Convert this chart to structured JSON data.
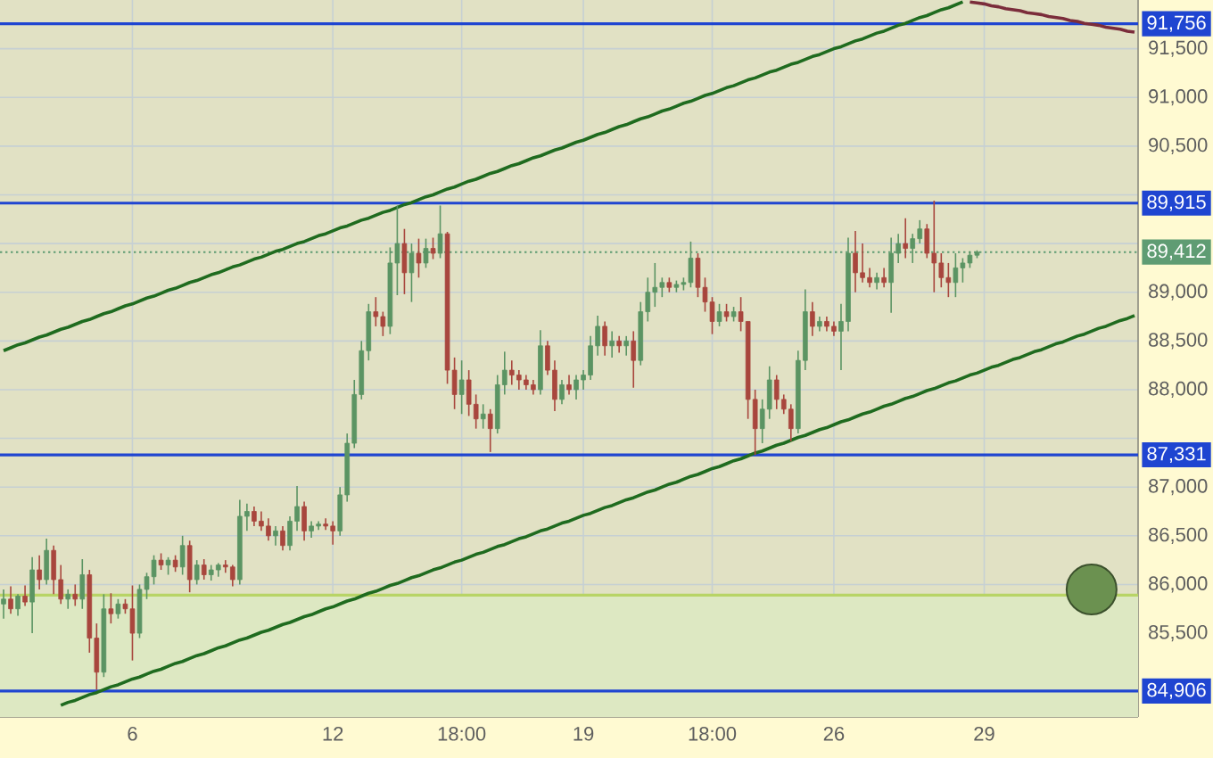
{
  "chart_data": {
    "type": "candlestick",
    "categories": [
      null,
      null,
      null,
      null,
      null,
      null,
      null,
      null,
      null,
      null,
      null,
      null,
      null,
      null,
      null,
      null,
      null,
      null,
      "6",
      null,
      null,
      null,
      null,
      null,
      null,
      null,
      null,
      null,
      null,
      null,
      null,
      null,
      null,
      null,
      null,
      null,
      null,
      null,
      null,
      null,
      null,
      null,
      null,
      null,
      null,
      null,
      "12",
      null,
      null,
      null,
      null,
      null,
      null,
      null,
      null,
      null,
      null,
      null,
      null,
      null,
      null,
      null,
      null,
      null,
      "18:00",
      null,
      null,
      null,
      null,
      null,
      null,
      null,
      null,
      null,
      null,
      null,
      null,
      null,
      null,
      null,
      null,
      "19",
      null,
      null,
      null,
      null,
      null,
      null,
      null,
      null,
      null,
      null,
      null,
      null,
      null,
      null,
      null,
      null,
      null,
      "18:00",
      null,
      null,
      null,
      null,
      null,
      null,
      null,
      null,
      null,
      null,
      null,
      null,
      null,
      null,
      null,
      null,
      "26",
      null,
      null,
      null,
      null,
      null,
      null,
      null,
      null,
      null,
      null,
      null,
      null,
      null,
      null,
      null,
      null,
      null,
      null,
      null,
      null,
      "29",
      null,
      null,
      null,
      null,
      null,
      null,
      null,
      null,
      null,
      null,
      null,
      null,
      null,
      null,
      null,
      null,
      null,
      null,
      null,
      null,
      null
    ],
    "ylim": [
      84640,
      92000
    ],
    "yticks": [
      {
        "value": 85000,
        "label": null
      },
      {
        "value": 85500,
        "label": "85,500"
      },
      {
        "value": 86000,
        "label": "86,000"
      },
      {
        "value": 86500,
        "label": "86,500"
      },
      {
        "value": 87000,
        "label": "87,000"
      },
      {
        "value": 87500,
        "label": null
      },
      {
        "value": 88000,
        "label": "88,000"
      },
      {
        "value": 88500,
        "label": "88,500"
      },
      {
        "value": 89000,
        "label": "89,000"
      },
      {
        "value": 89500,
        "label": null
      },
      {
        "value": 90000,
        "label": null
      },
      {
        "value": 90500,
        "label": "90,500"
      },
      {
        "value": 91000,
        "label": "91,000"
      },
      {
        "value": 91500,
        "label": "91,500"
      }
    ],
    "grid": true,
    "bands": [
      {
        "axis": "y",
        "from": 84640,
        "to": 85890,
        "color": "#dde8c2"
      }
    ],
    "ref_lines": [
      {
        "axis": "y",
        "value": 85890,
        "color": "#b8d466"
      },
      {
        "axis": "y",
        "value": 91756,
        "label": "91,756",
        "color": "#1f45d1"
      },
      {
        "axis": "y",
        "value": 89915,
        "label": "89,915",
        "color": "#1f45d1"
      },
      {
        "axis": "y",
        "value": 89412,
        "label": "89,412",
        "color": "#5f9c73",
        "line_style": "dotted"
      },
      {
        "axis": "y",
        "value": 87331,
        "label": "87,331",
        "color": "#1f45d1"
      },
      {
        "axis": "y",
        "value": 84906,
        "label": "84,906",
        "color": "#1f45d1"
      }
    ],
    "series": [
      {
        "ohlc": [
          [
            85800,
            85950,
            85650,
            85850
          ],
          [
            85850,
            85980,
            85700,
            85750
          ],
          [
            85750,
            85900,
            85680,
            85880
          ],
          [
            85880,
            85990,
            85780,
            85820
          ],
          [
            85820,
            86280,
            85500,
            86150
          ],
          [
            86150,
            86300,
            85950,
            86050
          ],
          [
            86050,
            86470,
            86000,
            86350
          ],
          [
            86350,
            86400,
            85900,
            86050
          ],
          [
            86050,
            86200,
            85800,
            85850
          ],
          [
            85850,
            85950,
            85750,
            85900
          ],
          [
            85900,
            86000,
            85780,
            85850
          ],
          [
            85850,
            86260,
            85750,
            86100
          ],
          [
            86100,
            86150,
            85300,
            85450
          ],
          [
            85450,
            85600,
            84920,
            85100
          ],
          [
            85100,
            85900,
            85050,
            85750
          ],
          [
            85750,
            85910,
            85600,
            85700
          ],
          [
            85700,
            85850,
            85650,
            85800
          ],
          [
            85800,
            85850,
            85700,
            85750
          ],
          [
            85750,
            85990,
            85220,
            85500
          ],
          [
            85500,
            86000,
            85450,
            85950
          ],
          [
            85950,
            86120,
            85850,
            86080
          ],
          [
            86080,
            86300,
            86000,
            86250
          ],
          [
            86250,
            86320,
            86150,
            86200
          ],
          [
            86200,
            86280,
            86100,
            86250
          ],
          [
            86250,
            86300,
            86130,
            86180
          ],
          [
            86180,
            86500,
            86100,
            86400
          ],
          [
            86400,
            86450,
            85920,
            86050
          ],
          [
            86050,
            86250,
            86000,
            86200
          ],
          [
            86200,
            86260,
            86050,
            86100
          ],
          [
            86100,
            86200,
            86040,
            86150
          ],
          [
            86150,
            86220,
            86080,
            86200
          ],
          [
            86200,
            86250,
            86120,
            86180
          ],
          [
            86180,
            86200,
            85980,
            86050
          ],
          [
            86050,
            86870,
            86000,
            86700
          ],
          [
            86700,
            86830,
            86550,
            86750
          ],
          [
            86750,
            86800,
            86600,
            86650
          ],
          [
            86650,
            86750,
            86550,
            86600
          ],
          [
            86600,
            86680,
            86450,
            86500
          ],
          [
            86500,
            86600,
            86400,
            86550
          ],
          [
            86550,
            86600,
            86350,
            86400
          ],
          [
            86400,
            86700,
            86350,
            86650
          ],
          [
            86650,
            87010,
            86550,
            86800
          ],
          [
            86800,
            86850,
            86450,
            86550
          ],
          [
            86550,
            86650,
            86480,
            86600
          ],
          [
            86600,
            86650,
            86560,
            86620
          ],
          [
            86620,
            86680,
            86560,
            86600
          ],
          [
            86600,
            86650,
            86410,
            86550
          ],
          [
            86550,
            87000,
            86500,
            86920
          ],
          [
            86920,
            87550,
            86850,
            87450
          ],
          [
            87450,
            88100,
            87400,
            87950
          ],
          [
            87950,
            88500,
            87900,
            88400
          ],
          [
            88400,
            88880,
            88300,
            88800
          ],
          [
            88800,
            88950,
            88650,
            88750
          ],
          [
            88750,
            88800,
            88550,
            88650
          ],
          [
            88650,
            89460,
            88570,
            89300
          ],
          [
            89300,
            89890,
            88970,
            89500
          ],
          [
            89500,
            89650,
            88980,
            89200
          ],
          [
            89200,
            89500,
            88900,
            89400
          ],
          [
            89400,
            89550,
            89150,
            89300
          ],
          [
            89300,
            89550,
            89250,
            89450
          ],
          [
            89450,
            89560,
            89340,
            89400
          ],
          [
            89400,
            89890,
            89350,
            89600
          ],
          [
            89600,
            89620,
            88060,
            88200
          ],
          [
            88200,
            88330,
            87800,
            87950
          ],
          [
            87950,
            88300,
            87750,
            88100
          ],
          [
            88100,
            88200,
            87730,
            87850
          ],
          [
            87850,
            87950,
            87600,
            87700
          ],
          [
            87700,
            87850,
            87600,
            87750
          ],
          [
            87750,
            87800,
            87360,
            87600
          ],
          [
            87600,
            88150,
            87550,
            88050
          ],
          [
            88050,
            88390,
            87950,
            88200
          ],
          [
            88200,
            88300,
            88050,
            88150
          ],
          [
            88150,
            88200,
            88000,
            88100
          ],
          [
            88100,
            88150,
            88000,
            88050
          ],
          [
            88050,
            88100,
            87950,
            88000
          ],
          [
            88000,
            88610,
            87950,
            88450
          ],
          [
            88450,
            88500,
            88150,
            88200
          ],
          [
            88200,
            88300,
            87780,
            87900
          ],
          [
            87900,
            88100,
            87850,
            88050
          ],
          [
            88050,
            88150,
            87950,
            88000
          ],
          [
            88000,
            88150,
            87900,
            88100
          ],
          [
            88100,
            88200,
            88000,
            88150
          ],
          [
            88150,
            88550,
            88100,
            88450
          ],
          [
            88450,
            88760,
            88350,
            88650
          ],
          [
            88650,
            88700,
            88350,
            88450
          ],
          [
            88450,
            88600,
            88330,
            88500
          ],
          [
            88500,
            88550,
            88380,
            88450
          ],
          [
            88450,
            88550,
            88350,
            88500
          ],
          [
            88500,
            88600,
            88020,
            88300
          ],
          [
            88300,
            88900,
            88250,
            88800
          ],
          [
            88800,
            89150,
            88700,
            89000
          ],
          [
            89000,
            89300,
            88850,
            89050
          ],
          [
            89050,
            89150,
            88950,
            89100
          ],
          [
            89100,
            89150,
            89000,
            89050
          ],
          [
            89050,
            89120,
            89000,
            89080
          ],
          [
            89080,
            89150,
            89020,
            89100
          ],
          [
            89100,
            89520,
            89050,
            89350
          ],
          [
            89350,
            89400,
            88950,
            89050
          ],
          [
            89050,
            89150,
            88800,
            88900
          ],
          [
            88900,
            88950,
            88570,
            88700
          ],
          [
            88700,
            88880,
            88650,
            88800
          ],
          [
            88800,
            88880,
            88700,
            88750
          ],
          [
            88750,
            88850,
            88700,
            88800
          ],
          [
            88800,
            88950,
            88600,
            88700
          ],
          [
            88700,
            88700,
            87700,
            87900
          ],
          [
            87900,
            88000,
            87330,
            87600
          ],
          [
            87600,
            87900,
            87450,
            87800
          ],
          [
            87800,
            88240,
            87700,
            88100
          ],
          [
            88100,
            88150,
            87800,
            87900
          ],
          [
            87900,
            87950,
            87750,
            87800
          ],
          [
            87800,
            87850,
            87470,
            87600
          ],
          [
            87600,
            88400,
            87550,
            88300
          ],
          [
            88300,
            89030,
            88200,
            88800
          ],
          [
            88800,
            88900,
            88550,
            88650
          ],
          [
            88650,
            88750,
            88600,
            88700
          ],
          [
            88700,
            88750,
            88600,
            88650
          ],
          [
            88650,
            88700,
            88550,
            88600
          ],
          [
            88600,
            88880,
            88200,
            88700
          ],
          [
            88700,
            89560,
            88600,
            89400
          ],
          [
            89400,
            89630,
            89000,
            89200
          ],
          [
            89200,
            89500,
            89100,
            89150
          ],
          [
            89150,
            89250,
            89050,
            89100
          ],
          [
            89100,
            89200,
            89030,
            89150
          ],
          [
            89150,
            89250,
            89050,
            89100
          ],
          [
            89100,
            89560,
            88790,
            89400
          ],
          [
            89400,
            89600,
            89300,
            89500
          ],
          [
            89500,
            89760,
            89350,
            89450
          ],
          [
            89450,
            89600,
            89300,
            89550
          ],
          [
            89550,
            89740,
            89500,
            89650
          ],
          [
            89650,
            89700,
            89350,
            89400
          ],
          [
            89400,
            89940,
            89000,
            89300
          ],
          [
            89300,
            89400,
            89050,
            89150
          ],
          [
            89150,
            89300,
            88950,
            89100
          ],
          [
            89100,
            89400,
            88950,
            89250
          ],
          [
            89250,
            89350,
            89100,
            89300
          ],
          [
            89300,
            89420,
            89250,
            89380
          ],
          [
            89380,
            89430,
            89350,
            89412
          ],
          null,
          null,
          null,
          null,
          null,
          null,
          null,
          null,
          null,
          null,
          null,
          null,
          null,
          null,
          null,
          null,
          null,
          null,
          null,
          null,
          null,
          null
        ],
        "colors": [
          "#5b9463",
          "#a8463d",
          "#5b9463",
          "#a8463d",
          "#5b9463",
          "#a8463d",
          "#5b9463",
          "#a8463d",
          "#a8463d",
          "#5b9463",
          "#a8463d",
          "#5b9463",
          "#a8463d",
          "#a8463d",
          "#5b9463",
          "#a8463d",
          "#5b9463",
          "#a8463d",
          "#a8463d",
          "#5b9463",
          "#5b9463",
          "#5b9463",
          "#a8463d",
          "#5b9463",
          "#a8463d",
          "#5b9463",
          "#a8463d",
          "#5b9463",
          "#a8463d",
          "#5b9463",
          "#5b9463",
          "#a8463d",
          "#a8463d",
          "#5b9463",
          "#5b9463",
          "#a8463d",
          "#a8463d",
          "#a8463d",
          "#5b9463",
          "#a8463d",
          "#5b9463",
          "#5b9463",
          "#a8463d",
          "#5b9463",
          "#5b9463",
          "#a8463d",
          "#a8463d",
          "#5b9463",
          "#5b9463",
          "#5b9463",
          "#5b9463",
          "#5b9463",
          "#a8463d",
          "#a8463d",
          "#5b9463",
          "#5b9463",
          "#a8463d",
          "#5b9463",
          "#a8463d",
          "#5b9463",
          "#a8463d",
          "#5b9463",
          "#a8463d",
          "#a8463d",
          "#5b9463",
          "#a8463d",
          "#a8463d",
          "#5b9463",
          "#a8463d",
          "#5b9463",
          "#5b9463",
          "#a8463d",
          "#a8463d",
          "#a8463d",
          "#a8463d",
          "#5b9463",
          "#a8463d",
          "#a8463d",
          "#5b9463",
          "#a8463d",
          "#5b9463",
          "#5b9463",
          "#5b9463",
          "#5b9463",
          "#a8463d",
          "#5b9463",
          "#a8463d",
          "#5b9463",
          "#a8463d",
          "#5b9463",
          "#5b9463",
          "#5b9463",
          "#5b9463",
          "#a8463d",
          "#5b9463",
          "#5b9463",
          "#5b9463",
          "#a8463d",
          "#a8463d",
          "#a8463d",
          "#5b9463",
          "#a8463d",
          "#5b9463",
          "#a8463d",
          "#a8463d",
          "#a8463d",
          "#5b9463",
          "#5b9463",
          "#a8463d",
          "#a8463d",
          "#a8463d",
          "#5b9463",
          "#5b9463",
          "#a8463d",
          "#5b9463",
          "#a8463d",
          "#a8463d",
          "#5b9463",
          "#5b9463",
          "#a8463d",
          "#a8463d",
          "#a8463d",
          "#5b9463",
          "#a8463d",
          "#5b9463",
          "#5b9463",
          "#a8463d",
          "#5b9463",
          "#5b9463",
          "#a8463d",
          "#a8463d",
          "#a8463d",
          "#a8463d",
          "#5b9463",
          "#5b9463",
          "#5b9463",
          "#5b9463",
          null,
          null,
          null,
          null,
          null,
          null,
          null,
          null,
          null,
          null,
          null,
          null,
          null,
          null,
          null,
          null,
          null,
          null,
          null,
          null,
          null,
          null
        ]
      },
      {
        "type": "line",
        "color": "#1f6b1f",
        "values": [
          88400,
          88430,
          88460,
          88480,
          88510,
          88540,
          88560,
          88590,
          88620,
          88640,
          88670,
          88700,
          88720,
          88750,
          88780,
          88800,
          88830,
          88860,
          88880,
          88910,
          88940,
          88960,
          88990,
          89020,
          89040,
          89070,
          89100,
          89120,
          89150,
          89180,
          89200,
          89230,
          89260,
          89280,
          89310,
          89340,
          89360,
          89390,
          89420,
          89440,
          89470,
          89500,
          89520,
          89550,
          89580,
          89600,
          89630,
          89660,
          89680,
          89710,
          89740,
          89760,
          89790,
          89820,
          89840,
          89870,
          89900,
          89920,
          89950,
          89980,
          90000,
          90030,
          90060,
          90080,
          90110,
          90140,
          90160,
          90190,
          90220,
          90240,
          90270,
          90300,
          90320,
          90350,
          90380,
          90400,
          90430,
          90460,
          90480,
          90510,
          90540,
          90560,
          90590,
          90620,
          90640,
          90670,
          90700,
          90720,
          90750,
          90780,
          90800,
          90830,
          90860,
          90880,
          90910,
          90940,
          90960,
          90990,
          91020,
          91040,
          91070,
          91100,
          91120,
          91150,
          91180,
          91200,
          91230,
          91260,
          91280,
          91310,
          91340,
          91360,
          91390,
          91420,
          91440,
          91470,
          91500,
          91520,
          91550,
          91580,
          91600,
          91630,
          91660,
          91680,
          91710,
          91740,
          91760,
          91790,
          91820,
          91840,
          91870,
          91900,
          91920,
          91950,
          91980,
          null,
          null,
          null,
          null,
          null,
          null,
          null,
          null,
          null,
          null,
          null,
          null,
          null,
          null,
          null,
          null,
          null,
          null,
          null,
          null,
          null,
          null,
          null,
          null
        ]
      },
      {
        "type": "line",
        "color": "#1f6b1f",
        "values": [
          null,
          null,
          null,
          null,
          null,
          null,
          null,
          null,
          84760,
          84790,
          84810,
          84840,
          84870,
          84890,
          84920,
          84950,
          84970,
          85000,
          85030,
          85050,
          85080,
          85110,
          85130,
          85160,
          85190,
          85210,
          85240,
          85270,
          85290,
          85320,
          85350,
          85370,
          85400,
          85430,
          85450,
          85480,
          85510,
          85530,
          85560,
          85590,
          85610,
          85640,
          85670,
          85690,
          85720,
          85750,
          85770,
          85800,
          85830,
          85850,
          85880,
          85910,
          85930,
          85960,
          85990,
          86010,
          86040,
          86070,
          86090,
          86120,
          86150,
          86170,
          86200,
          86230,
          86250,
          86280,
          86310,
          86330,
          86360,
          86390,
          86410,
          86440,
          86470,
          86490,
          86520,
          86550,
          86570,
          86600,
          86630,
          86650,
          86680,
          86710,
          86730,
          86760,
          86790,
          86810,
          86840,
          86870,
          86890,
          86920,
          86950,
          86970,
          87000,
          87030,
          87050,
          87080,
          87110,
          87130,
          87160,
          87190,
          87210,
          87240,
          87270,
          87290,
          87320,
          87350,
          87370,
          87400,
          87430,
          87450,
          87480,
          87510,
          87530,
          87560,
          87590,
          87610,
          87640,
          87670,
          87690,
          87720,
          87750,
          87770,
          87800,
          87830,
          87850,
          87880,
          87910,
          87930,
          87960,
          87990,
          88010,
          88040,
          88070,
          88090,
          88120,
          88150,
          88170,
          88200,
          88230,
          88250,
          88280,
          88310,
          88330,
          88360,
          88390,
          88410,
          88440,
          88470,
          88490,
          88520,
          88550,
          88570,
          88600,
          88630,
          88650,
          88680,
          88710,
          88730,
          88760
        ]
      },
      {
        "type": "line",
        "color": "#7b2d3b",
        "values": [
          null,
          null,
          null,
          null,
          null,
          null,
          null,
          null,
          null,
          null,
          null,
          null,
          null,
          null,
          null,
          null,
          null,
          null,
          null,
          null,
          null,
          null,
          null,
          null,
          null,
          null,
          null,
          null,
          null,
          null,
          null,
          null,
          null,
          null,
          null,
          null,
          null,
          null,
          null,
          null,
          null,
          null,
          null,
          null,
          null,
          null,
          null,
          null,
          null,
          null,
          null,
          null,
          null,
          null,
          null,
          null,
          null,
          null,
          null,
          null,
          null,
          null,
          null,
          null,
          null,
          null,
          null,
          null,
          null,
          null,
          null,
          null,
          null,
          null,
          null,
          null,
          null,
          null,
          null,
          null,
          null,
          null,
          null,
          null,
          null,
          null,
          null,
          null,
          null,
          null,
          null,
          null,
          null,
          null,
          null,
          null,
          null,
          null,
          null,
          null,
          null,
          null,
          null,
          null,
          null,
          null,
          null,
          null,
          null,
          null,
          null,
          null,
          null,
          null,
          null,
          null,
          null,
          null,
          null,
          null,
          null,
          null,
          null,
          null,
          null,
          null,
          null,
          null,
          null,
          null,
          null,
          null,
          null,
          null,
          null,
          91980,
          91970,
          91960,
          91940,
          91930,
          91910,
          91900,
          91890,
          91870,
          91860,
          91850,
          91830,
          91820,
          91810,
          91790,
          91780,
          91760,
          91750,
          91740,
          91720,
          91710,
          91700,
          91680,
          91670
        ]
      },
      {
        "type": "scatter",
        "color": "#6b9150",
        "marker": "circle",
        "values": [
          null,
          null,
          null,
          null,
          null,
          null,
          null,
          null,
          null,
          null,
          null,
          null,
          null,
          null,
          null,
          null,
          null,
          null,
          null,
          null,
          null,
          null,
          null,
          null,
          null,
          null,
          null,
          null,
          null,
          null,
          null,
          null,
          null,
          null,
          null,
          null,
          null,
          null,
          null,
          null,
          null,
          null,
          null,
          null,
          null,
          null,
          null,
          null,
          null,
          null,
          null,
          null,
          null,
          null,
          null,
          null,
          null,
          null,
          null,
          null,
          null,
          null,
          null,
          null,
          null,
          null,
          null,
          null,
          null,
          null,
          null,
          null,
          null,
          null,
          null,
          null,
          null,
          null,
          null,
          null,
          null,
          null,
          null,
          null,
          null,
          null,
          null,
          null,
          null,
          null,
          null,
          null,
          null,
          null,
          null,
          null,
          null,
          null,
          null,
          null,
          null,
          null,
          null,
          null,
          null,
          null,
          null,
          null,
          null,
          null,
          null,
          null,
          null,
          null,
          null,
          null,
          null,
          null,
          null,
          null,
          null,
          null,
          null,
          null,
          null,
          null,
          null,
          null,
          null,
          null,
          null,
          null,
          null,
          null,
          null,
          null,
          null,
          null,
          null,
          null,
          null,
          null,
          null,
          null,
          null,
          null,
          null,
          null,
          null,
          null,
          null,
          null,
          85950,
          null,
          null,
          null,
          null,
          null,
          null
        ]
      }
    ]
  }
}
